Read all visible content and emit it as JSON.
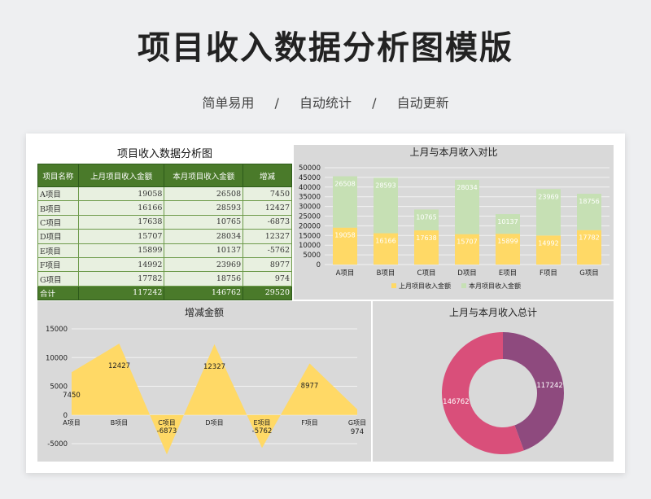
{
  "header": {
    "title": "项目收入数据分析图模版",
    "tags": [
      "简单易用",
      "/",
      "自动统计",
      "/",
      "自动更新"
    ]
  },
  "table": {
    "title": "项目收入数据分析图",
    "headers": [
      "项目名称",
      "上月项目收入金额",
      "本月项目收入金额",
      "增减"
    ],
    "rows": [
      [
        "A项目",
        "19058",
        "26508",
        "7450"
      ],
      [
        "B项目",
        "16166",
        "28593",
        "12427"
      ],
      [
        "C项目",
        "17638",
        "10765",
        "-6873"
      ],
      [
        "D项目",
        "15707",
        "28034",
        "12327"
      ],
      [
        "E项目",
        "15899",
        "10137",
        "-5762"
      ],
      [
        "F项目",
        "14992",
        "23969",
        "8977"
      ],
      [
        "G项目",
        "17782",
        "18756",
        "974"
      ]
    ],
    "total": [
      "合计",
      "117242",
      "146762",
      "29520"
    ]
  },
  "colors": {
    "last_month": "#ffd966",
    "this_month": "#c6e0b4",
    "area": "#ffd966",
    "pie_a": "#8e4a7e",
    "pie_b": "#d94f7a"
  },
  "chart_data": [
    {
      "type": "bar",
      "title": "上月与本月收入对比",
      "stacked": true,
      "categories": [
        "A项目",
        "B项目",
        "C项目",
        "D项目",
        "E项目",
        "F项目",
        "G项目"
      ],
      "series": [
        {
          "name": "上月项目收入金额",
          "values": [
            19058,
            16166,
            17638,
            15707,
            15899,
            14992,
            17782
          ]
        },
        {
          "name": "本月项目收入金额",
          "values": [
            26508,
            28593,
            10765,
            28034,
            10137,
            23969,
            18756
          ]
        }
      ],
      "yticks": [
        "0",
        "5000",
        "10000",
        "15000",
        "20000",
        "25000",
        "30000",
        "35000",
        "40000",
        "45000",
        "50000"
      ],
      "ylim": [
        0,
        50000
      ],
      "legend": "bottom"
    },
    {
      "type": "area",
      "title": "增减金额",
      "categories": [
        "A项目",
        "B项目",
        "C项目",
        "D项目",
        "E项目",
        "F项目",
        "G项目"
      ],
      "values": [
        7450,
        12427,
        -6873,
        12327,
        -5762,
        8977,
        974
      ],
      "labels": [
        "7450",
        "12427",
        "-6873",
        "12327",
        "-5762",
        "8977",
        "974"
      ],
      "yticks": [
        "-5000",
        "0",
        "5000",
        "10000",
        "15000"
      ],
      "ylim": [
        -5000,
        15000
      ]
    },
    {
      "type": "pie",
      "title": "上月与本月收入总计",
      "donut": true,
      "values": [
        117242,
        146762
      ],
      "labels": [
        "117242",
        "146762"
      ]
    }
  ]
}
